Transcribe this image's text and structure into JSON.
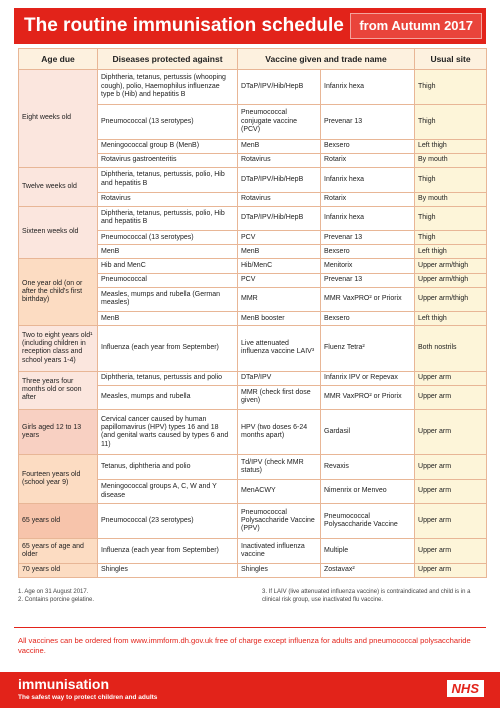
{
  "header": {
    "title": "The routine immunisation schedule",
    "edition": "from Autumn 2017"
  },
  "table": {
    "columns": [
      "Age due",
      "Diseases protected against",
      "Vaccine given and trade name",
      "Usual site"
    ],
    "groups": [
      {
        "age": "Eight weeks old",
        "rows": [
          [
            "Diphtheria, tetanus, pertussis (whooping cough), polio, Haemophilus influenzae type b (Hib) and hepatitis B",
            "DTaP/IPV/Hib/HepB",
            "Infanrix hexa",
            "Thigh"
          ],
          [
            "Pneumococcal (13 serotypes)",
            "Pneumococcal conjugate vaccine (PCV)",
            "Prevenar 13",
            "Thigh"
          ],
          [
            "Meningococcal group B (MenB)",
            "MenB",
            "Bexsero",
            "Left thigh"
          ],
          [
            "Rotavirus gastroenteritis",
            "Rotavirus",
            "Rotarix",
            "By mouth"
          ]
        ]
      },
      {
        "age": "Twelve weeks old",
        "rows": [
          [
            "Diphtheria, tetanus, pertussis, polio, Hib and hepatitis B",
            "DTaP/IPV/Hib/HepB",
            "Infanrix hexa",
            "Thigh"
          ],
          [
            "Rotavirus",
            "Rotavirus",
            "Rotarix",
            "By mouth"
          ]
        ]
      },
      {
        "age": "Sixteen weeks old",
        "rows": [
          [
            "Diphtheria, tetanus, pertussis, polio, Hib and hepatitis B",
            "DTaP/IPV/Hib/HepB",
            "Infanrix hexa",
            "Thigh"
          ],
          [
            "Pneumococcal (13 serotypes)",
            "PCV",
            "Prevenar 13",
            "Thigh"
          ],
          [
            "MenB",
            "MenB",
            "Bexsero",
            "Left thigh"
          ]
        ]
      },
      {
        "age": "One year old (on or after the child's first birthday)",
        "rows": [
          [
            "Hib and MenC",
            "Hib/MenC",
            "Menitorix",
            "Upper arm/thigh"
          ],
          [
            "Pneumococcal",
            "PCV",
            "Prevenar 13",
            "Upper arm/thigh"
          ],
          [
            "Measles, mumps and rubella (German measles)",
            "MMR",
            "MMR VaxPRO² or Priorix",
            "Upper arm/thigh"
          ],
          [
            "MenB",
            "MenB booster",
            "Bexsero",
            "Left thigh"
          ]
        ]
      },
      {
        "age": "Two to eight years old¹ (including children in reception class and school years 1-4)",
        "rows": [
          [
            "Influenza (each year from September)",
            "Live attenuated influenza vaccine LAIV³",
            "Fluenz Tetra²",
            "Both nostrils"
          ]
        ]
      },
      {
        "age": "Three years four months old or soon after",
        "rows": [
          [
            "Diphtheria, tetanus, pertussis and polio",
            "DTaP/IPV",
            "Infanrix IPV or Repevax",
            "Upper arm"
          ],
          [
            "Measles, mumps and rubella",
            "MMR (check first dose given)",
            "MMR VaxPRO² or Priorix",
            "Upper arm"
          ]
        ]
      },
      {
        "age": "Girls aged 12 to 13 years",
        "rows": [
          [
            "Cervical cancer caused by human papillomavirus (HPV) types 16 and 18 (and genital warts caused by types 6 and 11)",
            "HPV (two doses 6-24 months apart)",
            "Gardasil",
            "Upper arm"
          ]
        ]
      },
      {
        "age": "Fourteen years old (school year 9)",
        "rows": [
          [
            "Tetanus, diphtheria and polio",
            "Td/IPV (check MMR status)",
            "Revaxis",
            "Upper arm"
          ],
          [
            "Meningococcal groups A, C, W and Y disease",
            "MenACWY",
            "Nimenrix or Menveo",
            "Upper arm"
          ]
        ]
      },
      {
        "age": "65 years old",
        "rows": [
          [
            "Pneumococcal (23 serotypes)",
            "Pneumococcal Polysaccharide Vaccine (PPV)",
            "Pneumococcal Polysaccharide Vaccine",
            "Upper arm"
          ]
        ]
      },
      {
        "age": "65 years of age and older",
        "rows": [
          [
            "Influenza (each year from September)",
            "Inactivated influenza vaccine",
            "Multiple",
            "Upper arm"
          ]
        ]
      },
      {
        "age": "70 years old",
        "rows": [
          [
            "Shingles",
            "Shingles",
            "Zostavax²",
            "Upper arm"
          ]
        ]
      }
    ]
  },
  "footnotes": [
    "1. Age on 31 August 2017.",
    "2. Contains porcine gelatine.",
    "3. If LAIV (live attenuated influenza vaccine) is contraindicated and child is in a clinical risk group, use inactivated flu vaccine."
  ],
  "note": "All vaccines can be ordered from www.immform.dh.gov.uk free of charge except influenza for adults and pneumococcal polysaccharide vaccine.",
  "footer": {
    "logo": "immunisation",
    "tagline": "The safest way to protect children and adults",
    "nhs": "NHS"
  }
}
